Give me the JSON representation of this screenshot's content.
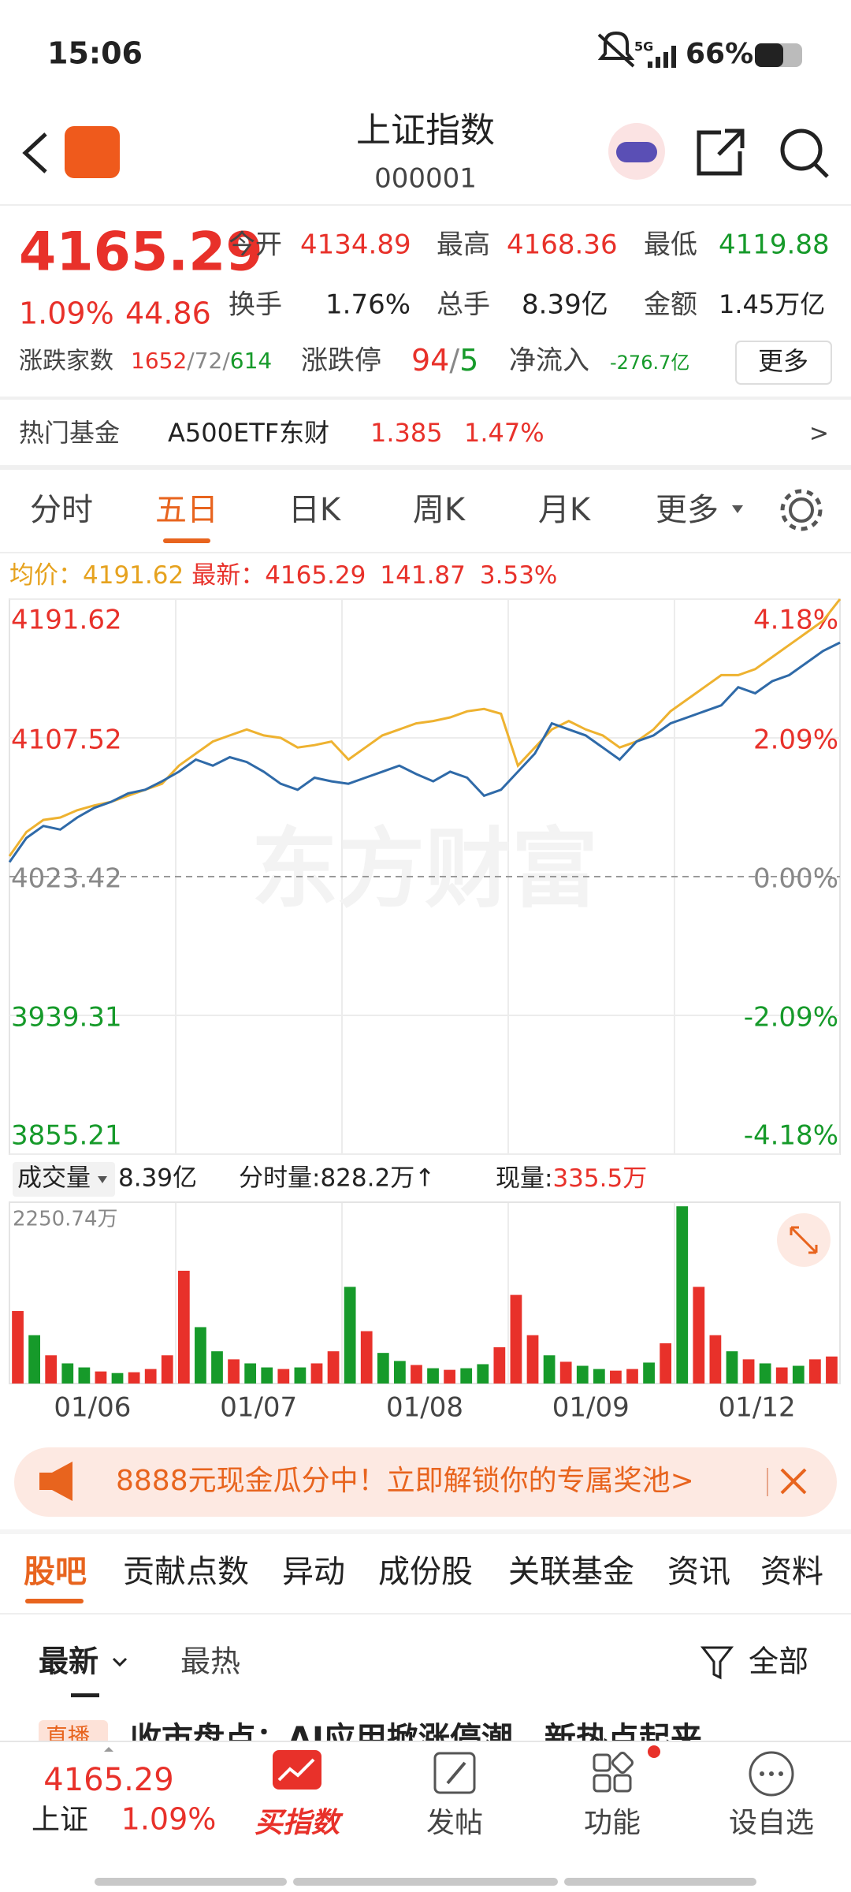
{
  "status_bar": {
    "time": "15:06",
    "network": "5G",
    "battery": "66%"
  },
  "header": {
    "title": "上证指数",
    "code": "000001"
  },
  "quote": {
    "price": "4165.29",
    "change_pct": "1.09%",
    "change": "44.86",
    "open_label": "今开",
    "open": "4134.89",
    "high_label": "最高",
    "high": "4168.36",
    "low_label": "最低",
    "low": "4119.88",
    "turnover_label": "换手",
    "turnover": "1.76%",
    "volume_label": "总手",
    "volume": "8.39亿",
    "amount_label": "金额",
    "amount": "1.45万亿",
    "breadth_label": "涨跌家数",
    "breadth": [
      "1652",
      "/",
      "72",
      "/",
      "614"
    ],
    "limit_label": "涨跌停",
    "limit": [
      "94",
      "/",
      "5"
    ],
    "inflow_label": "净流入",
    "inflow": "-276.7亿",
    "more": "更多"
  },
  "hot_fund": {
    "label": "热门基金",
    "name": "A500ETF东财",
    "price": "1.385",
    "pct": "1.47%",
    "arrow": ">"
  },
  "chart_tabs": [
    "分时",
    "五日",
    "日K",
    "周K",
    "月K",
    "更多"
  ],
  "chart_data": [
    {
      "type": "line",
      "watermark": "东方财富",
      "change": "141.87",
      "change_pct": "3.53%",
      "ylim": [
        3855.21,
        4191.62
      ],
      "yticks": [
        4191.62,
        4107.52,
        4023.42,
        3939.31,
        3855.21
      ],
      "y2lim": [
        -4.18,
        4.18
      ],
      "y2ticks": [
        {
          "value": 4.18,
          "label": "4.18%"
        },
        {
          "value": 2.09,
          "label": "2.09%"
        },
        {
          "value": 0,
          "label": "0.00%"
        },
        {
          "value": -2.09,
          "label": "-2.09%"
        },
        {
          "value": -4.18,
          "label": "-4.18%"
        }
      ],
      "series": [
        {
          "name": "最新：",
          "color": "#2f6aa8",
          "values": [
            4032.2,
            4046.82,
            4054.13,
            4051.94,
            4059.25,
            4065.1,
            4068.76,
            4073.88,
            4076.07,
            4081.19,
            4087.04,
            4094.36,
            4090.7,
            4095.82,
            4092.89,
            4087.04,
            4079.73,
            4076.07,
            4083.39,
            4081.19,
            4079.73,
            4083.39,
            4087.04,
            4090.7,
            4085.58,
            4081.19,
            4087.04,
            4083.39,
            4072.42,
            4076.07,
            4087.04,
            4098.01,
            4116.3,
            4112.64,
            4108.98,
            4101.67,
            4094.36,
            4105.33,
            4108.98,
            4116.3,
            4119.95,
            4123.61,
            4127.26,
            4138.23,
            4134.58,
            4141.89,
            4145.55,
            4152.86,
            4160.17,
            4165.29
          ]
        },
        {
          "name": "均价：",
          "color": "#eeb230",
          "values": [
            4035.85,
            4050.48,
            4057.79,
            4059.25,
            4063.64,
            4066.57,
            4068.76,
            4072.42,
            4076.07,
            4079.73,
            4090.7,
            4098.01,
            4105.33,
            4108.98,
            4112.64,
            4108.98,
            4107.52,
            4101.67,
            4103.13,
            4105.33,
            4094.36,
            4101.67,
            4108.98,
            4112.64,
            4116.3,
            4117.76,
            4119.95,
            4123.61,
            4125.07,
            4122.15,
            4090.7,
            4101.67,
            4112.64,
            4117.76,
            4112.64,
            4108.98,
            4101.67,
            4105.33,
            4112.64,
            4123.61,
            4130.92,
            4138.23,
            4145.55,
            4145.55,
            4149.2,
            4156.52,
            4163.83,
            4171.14,
            4178.46,
            4191.62
          ]
        }
      ]
    },
    {
      "type": "bar",
      "selector": "成交量",
      "total": "8.39亿",
      "tick_volume": "分时量:828.2万↑",
      "current_label": "现量:",
      "current": "335.5万",
      "ylim": [
        0,
        2250.74
      ],
      "yticks": [
        {
          "value": 2250.74,
          "label": "2250.74万"
        }
      ],
      "xtick_labels": [
        "01/06",
        "01/07",
        "01/08",
        "01/09",
        "01/12"
      ],
      "values": [
        900,
        600,
        350,
        250,
        200,
        150,
        130,
        140,
        180,
        350,
        1400,
        700,
        400,
        300,
        250,
        200,
        180,
        200,
        250,
        400,
        1200,
        650,
        380,
        280,
        230,
        190,
        170,
        190,
        240,
        450,
        1100,
        600,
        350,
        270,
        220,
        180,
        160,
        180,
        260,
        500,
        2200,
        1200,
        600,
        400,
        300,
        250,
        200,
        220,
        300,
        335.5
      ],
      "colors": [
        "#e8312a",
        "#169a2a",
        "#e8312a",
        "#169a2a",
        "#169a2a",
        "#e8312a",
        "#169a2a",
        "#e8312a",
        "#e8312a",
        "#e8312a",
        "#e8312a",
        "#169a2a",
        "#169a2a",
        "#e8312a",
        "#169a2a",
        "#169a2a",
        "#e8312a",
        "#169a2a",
        "#e8312a",
        "#e8312a",
        "#169a2a",
        "#e8312a",
        "#169a2a",
        "#169a2a",
        "#e8312a",
        "#169a2a",
        "#e8312a",
        "#169a2a",
        "#169a2a",
        "#e8312a",
        "#e8312a",
        "#e8312a",
        "#169a2a",
        "#e8312a",
        "#169a2a",
        "#169a2a",
        "#e8312a",
        "#e8312a",
        "#169a2a",
        "#e8312a",
        "#169a2a",
        "#e8312a",
        "#e8312a",
        "#169a2a",
        "#e8312a",
        "#169a2a",
        "#e8312a",
        "#169a2a",
        "#e8312a",
        "#e8312a"
      ]
    }
  ],
  "banner": {
    "text": "8888元现金瓜分中！立即解锁你的专属奖池>"
  },
  "info_tabs": [
    "股吧",
    "贡献点数",
    "异动",
    "成份股",
    "关联基金",
    "资讯",
    "资料"
  ],
  "sort": {
    "latest": "最新",
    "hot": "最热",
    "filter": "全部"
  },
  "news": {
    "tag": "直播",
    "title": "收市盘点：AI应用掀涨停潮，新热点起来…"
  },
  "bottom_nav": {
    "price": "4165.29",
    "name": "上证",
    "pct": "1.09%",
    "buy": "买指数",
    "post": "发帖",
    "function": "功能",
    "watch": "设自选"
  }
}
